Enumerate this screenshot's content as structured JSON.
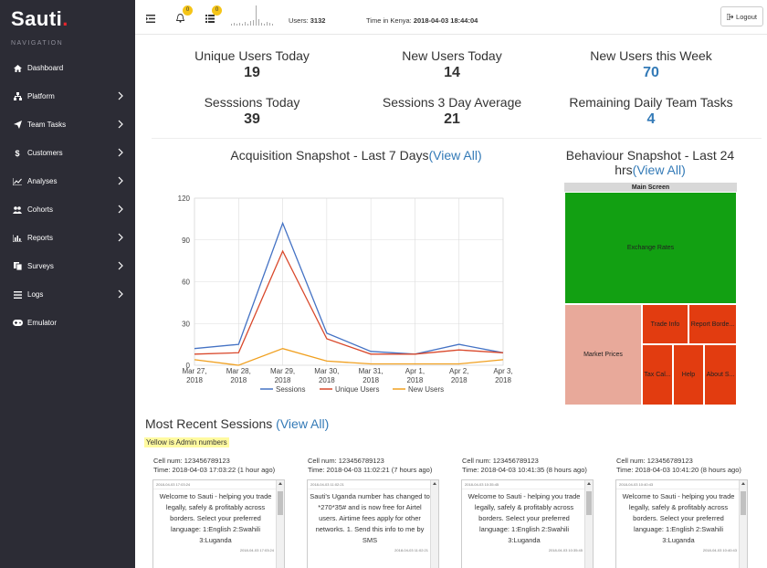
{
  "brand": {
    "name": "Sauti",
    "dot": "."
  },
  "nav": {
    "heading": "NAVIGATION",
    "items": [
      {
        "label": "Dashboard",
        "icon": "home-icon",
        "chevron": false
      },
      {
        "label": "Platform",
        "icon": "sitemap-icon",
        "chevron": true
      },
      {
        "label": "Team Tasks",
        "icon": "paper-plane-icon",
        "chevron": true
      },
      {
        "label": "Customers",
        "icon": "dollar-icon",
        "chevron": true
      },
      {
        "label": "Analyses",
        "icon": "line-chart-icon",
        "chevron": true
      },
      {
        "label": "Cohorts",
        "icon": "users-icon",
        "chevron": true
      },
      {
        "label": "Reports",
        "icon": "bar-chart-icon",
        "chevron": true
      },
      {
        "label": "Surveys",
        "icon": "copy-icon",
        "chevron": true
      },
      {
        "label": "Logs",
        "icon": "list-icon",
        "chevron": true
      },
      {
        "label": "Emulator",
        "icon": "gamepad-icon",
        "chevron": false
      }
    ]
  },
  "topbar": {
    "notifications_count": "0",
    "tasks_count": "0",
    "users_label": "Users: ",
    "users_value": "3132",
    "time_label": "Time in Kenya: ",
    "time_value": "2018-04-03 18:44:04",
    "logout_label": "Logout"
  },
  "stats": [
    {
      "label": "Unique Users Today",
      "value": "19",
      "blue": false
    },
    {
      "label": "New Users Today",
      "value": "14",
      "blue": false
    },
    {
      "label": "New Users this Week",
      "value": "70",
      "blue": true
    },
    {
      "label": "Sesssions Today",
      "value": "39",
      "blue": false
    },
    {
      "label": "Sessions 3 Day Average",
      "value": "21",
      "blue": false
    },
    {
      "label": "Remaining Daily Team Tasks",
      "value": "4",
      "blue": true
    }
  ],
  "acquisition": {
    "title": "Acquisition Snapshot - Last 7 Days",
    "link": "(View All)"
  },
  "behaviour": {
    "title": "Behaviour Snapshot - Last 24 hrs",
    "link": "(View All)"
  },
  "chart_data": [
    {
      "type": "line",
      "x": [
        "Mar 27, 2018",
        "Mar 28, 2018",
        "Mar 29, 2018",
        "Mar 30, 2018",
        "Mar 31, 2018",
        "Apr 1, 2018",
        "Apr 2, 2018",
        "Apr 3, 2018"
      ],
      "ylim": [
        0,
        120
      ],
      "yticks": [
        0,
        30,
        60,
        90,
        120
      ],
      "grid": true,
      "legend_position": "bottom",
      "series": [
        {
          "name": "Sessions",
          "color": "#4472c4",
          "values": [
            12,
            15,
            102,
            23,
            10,
            8,
            15,
            9
          ]
        },
        {
          "name": "Unique Users",
          "color": "#d9482b",
          "values": [
            8,
            9,
            82,
            19,
            8,
            8,
            11,
            9
          ]
        },
        {
          "name": "New Users",
          "color": "#f0a020",
          "values": [
            4,
            0,
            12,
            3,
            1,
            1,
            1,
            4
          ]
        }
      ]
    },
    {
      "type": "treemap",
      "header": "Main Screen",
      "cells": [
        {
          "label": "Exchange Rates",
          "color": "#12a012"
        },
        {
          "label": "Market Prices",
          "color": "#e8a99a"
        },
        {
          "label": "Trade Info",
          "color": "#e23c10"
        },
        {
          "label": "Report Borde...",
          "color": "#e23c10"
        },
        {
          "label": "Tax Cal...",
          "color": "#e23c10"
        },
        {
          "label": "Help",
          "color": "#e23c10"
        },
        {
          "label": "About S...",
          "color": "#e23c10"
        }
      ]
    }
  ],
  "recent": {
    "title": "Most Recent Sessions ",
    "link": "(View All)",
    "admin_note": "Yellow is Admin numbers",
    "sessions": [
      {
        "cell": "Cell num: 123456789123",
        "time": "Time: 2018-04-03 17:03:22 (1 hour ago)",
        "ts": "2018-04-03 17:03:24",
        "message": "Welcome to Sauti - helping you trade legally, safely & profitably across borders. Select your preferred language: 1:English 2:Swahili 3:Luganda",
        "ts2": "2018-04-03 17:03:24"
      },
      {
        "cell": "Cell num: 123456789123",
        "time": "Time: 2018-04-03 11:02:21 (7 hours ago)",
        "ts": "2018-04-03 11:02:21",
        "message": "Sauti's Uganda number has changed to *270*35# and is now free for Airtel users. Airtime fees apply for other networks. 1. Send this info to me by SMS",
        "ts2": "2018-04-03 11:02:21"
      },
      {
        "cell": "Cell num: 123456789123",
        "time": "Time: 2018-04-03 10:41:35 (8 hours ago)",
        "ts": "2018-04-03 10:35:45",
        "message": "Welcome to Sauti - helping you trade legally, safely & profitably across borders. Select your preferred language: 1:English 2:Swahili 3:Luganda",
        "ts2": "2018-04-03 10:35:45"
      },
      {
        "cell": "Cell num: 123456789123",
        "time": "Time: 2018-04-03 10:41:20 (8 hours ago)",
        "ts": "2018-04-03 10:40:43",
        "message": "Welcome to Sauti - helping you trade legally, safely & profitably across borders. Select your preferred language: 1:English 2:Swahili 3:Luganda",
        "ts2": "2018-04-03 10:40:43"
      }
    ]
  }
}
